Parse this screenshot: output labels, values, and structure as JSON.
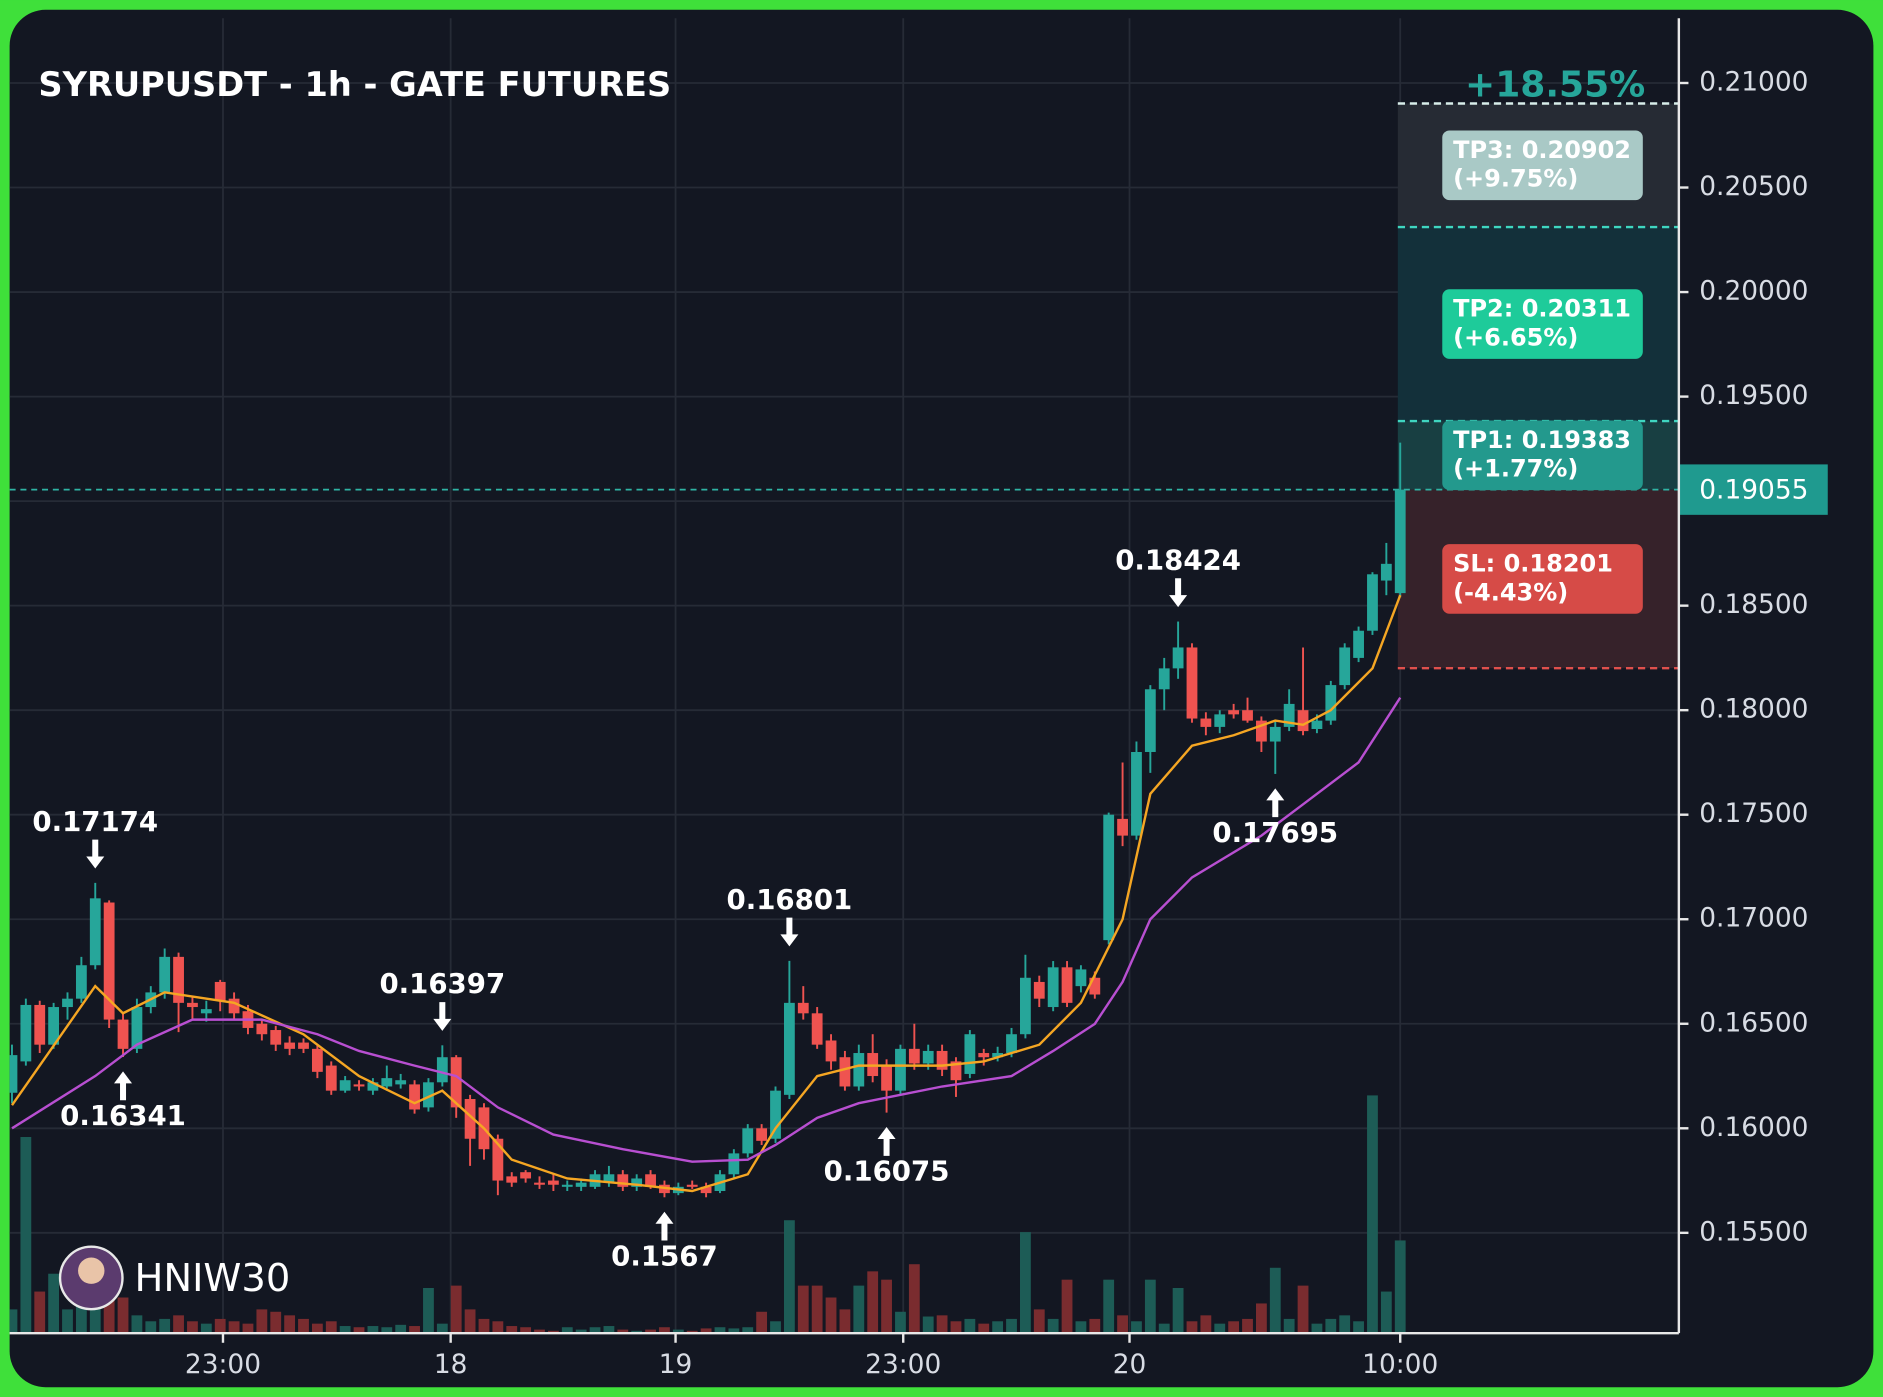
{
  "chart_data": {
    "type": "candlestick",
    "title": "SYRUPUSDT - 1h - GATE FUTURES",
    "watermark": "HNIW30",
    "change": "+18.55%",
    "up_color": "#26a69a",
    "down_color": "#ef5350",
    "volume_up_color": "#1d5c56",
    "volume_down_color": "#7a2c2f",
    "ylim": [
      0.1502,
      0.2131
    ],
    "yticks": [
      {
        "value": 0.155,
        "label": "0.15500"
      },
      {
        "value": 0.16,
        "label": "0.16000"
      },
      {
        "value": 0.165,
        "label": "0.16500"
      },
      {
        "value": 0.17,
        "label": "0.17000"
      },
      {
        "value": 0.175,
        "label": "0.17500"
      },
      {
        "value": 0.18,
        "label": "0.18000"
      },
      {
        "value": 0.185,
        "label": "0.18500"
      },
      {
        "value": 0.19,
        "label": "0.19000"
      },
      {
        "value": 0.195,
        "label": "0.19500"
      },
      {
        "value": 0.2,
        "label": "0.20000"
      },
      {
        "value": 0.205,
        "label": "0.20500"
      },
      {
        "value": 0.21,
        "label": "0.21000"
      }
    ],
    "xlim": [
      -0.17,
      120.07
    ],
    "xticks": [
      {
        "value": 15.2,
        "label": "23:00"
      },
      {
        "value": 31.6,
        "label": "18"
      },
      {
        "value": 47.8,
        "label": "19"
      },
      {
        "value": 64.2,
        "label": "23:00"
      },
      {
        "value": 80.5,
        "label": "20"
      },
      {
        "value": 100,
        "label": "10:00"
      }
    ],
    "grid": true,
    "open": [
      0.1617,
      0.1632,
      0.1659,
      0.164,
      0.1658,
      0.1662,
      0.1678,
      0.1708,
      0.1652,
      0.1638,
      0.1658,
      0.1665,
      0.1682,
      0.166,
      0.1655,
      0.167,
      0.1662,
      0.1656,
      0.165,
      0.1647,
      0.1641,
      0.1641,
      0.1638,
      0.163,
      0.1618,
      0.1621,
      0.1618,
      0.162,
      0.1621,
      0.1621,
      0.161,
      0.1622,
      0.1634,
      0.1614,
      0.161,
      0.1595,
      0.1577,
      0.1579,
      0.1574,
      0.1575,
      0.1572,
      0.1572,
      0.1572,
      0.1574,
      0.1578,
      0.1572,
      0.1578,
      0.1573,
      0.1569,
      0.1573,
      0.1572,
      0.157,
      0.1578,
      0.1588,
      0.16,
      0.1595,
      0.1616,
      0.166,
      0.1655,
      0.1642,
      0.1634,
      0.162,
      0.1636,
      0.163,
      0.1618,
      0.1638,
      0.1631,
      0.1637,
      0.1632,
      0.1626,
      0.1636,
      0.1634,
      0.1636,
      0.1645,
      0.167,
      0.1658,
      0.1677,
      0.1668,
      0.1672,
      0.169,
      0.1748,
      0.174,
      0.178,
      0.181,
      0.182,
      0.183,
      0.1796,
      0.1792,
      0.18,
      0.18,
      0.1795,
      0.1785,
      0.1792,
      0.18,
      0.1791,
      0.1795,
      0.1812,
      0.1825,
      0.1838,
      0.1862,
      0.1856
    ],
    "high": [
      0.164,
      0.1662,
      0.1661,
      0.166,
      0.1665,
      0.1682,
      0.17174,
      0.1709,
      0.1655,
      0.1662,
      0.1668,
      0.1686,
      0.1684,
      0.1663,
      0.1661,
      0.1671,
      0.1665,
      0.1659,
      0.1652,
      0.1649,
      0.1644,
      0.1643,
      0.164,
      0.1632,
      0.1625,
      0.1623,
      0.1624,
      0.163,
      0.1626,
      0.1623,
      0.1624,
      0.16397,
      0.1635,
      0.1616,
      0.1612,
      0.1597,
      0.1579,
      0.158,
      0.1577,
      0.1578,
      0.1575,
      0.1576,
      0.158,
      0.1582,
      0.158,
      0.1578,
      0.158,
      0.1575,
      0.1574,
      0.1575,
      0.1574,
      0.158,
      0.159,
      0.1602,
      0.1602,
      0.162,
      0.16801,
      0.1668,
      0.1658,
      0.1645,
      0.1637,
      0.164,
      0.1645,
      0.1633,
      0.164,
      0.165,
      0.164,
      0.164,
      0.1634,
      0.1647,
      0.1638,
      0.1639,
      0.1648,
      0.1683,
      0.1673,
      0.168,
      0.168,
      0.1678,
      0.1675,
      0.1751,
      0.1775,
      0.1785,
      0.1812,
      0.1825,
      0.18424,
      0.1832,
      0.1799,
      0.18,
      0.1803,
      0.1806,
      0.1797,
      0.1795,
      0.181,
      0.183,
      0.1798,
      0.1814,
      0.1832,
      0.184,
      0.1866,
      0.188,
      0.1928
    ],
    "low": [
      0.1612,
      0.163,
      0.1636,
      0.1638,
      0.1652,
      0.166,
      0.1676,
      0.1648,
      0.16341,
      0.1636,
      0.1655,
      0.1662,
      0.1646,
      0.1652,
      0.1651,
      0.1656,
      0.1652,
      0.1645,
      0.1642,
      0.1637,
      0.1635,
      0.1636,
      0.1624,
      0.1616,
      0.1617,
      0.1618,
      0.1616,
      0.1618,
      0.1619,
      0.1607,
      0.1608,
      0.162,
      0.1605,
      0.1582,
      0.1585,
      0.1568,
      0.1572,
      0.1574,
      0.1571,
      0.157,
      0.157,
      0.157,
      0.1571,
      0.1572,
      0.157,
      0.157,
      0.1571,
      0.1567,
      0.1568,
      0.1571,
      0.1567,
      0.1569,
      0.1576,
      0.1586,
      0.1592,
      0.1593,
      0.1614,
      0.1652,
      0.1638,
      0.1628,
      0.1618,
      0.1618,
      0.1622,
      0.16075,
      0.1616,
      0.1628,
      0.1628,
      0.1625,
      0.1615,
      0.1624,
      0.163,
      0.1632,
      0.1634,
      0.1643,
      0.1658,
      0.1656,
      0.1658,
      0.1665,
      0.1662,
      0.1688,
      0.1735,
      0.1738,
      0.177,
      0.18,
      0.1815,
      0.1794,
      0.1788,
      0.1789,
      0.1796,
      0.1794,
      0.178,
      0.17695,
      0.179,
      0.1788,
      0.1789,
      0.1793,
      0.181,
      0.1823,
      0.1836,
      0.1855,
      0.1854
    ],
    "close": [
      0.1635,
      0.1659,
      0.164,
      0.1658,
      0.1662,
      0.1678,
      0.171,
      0.1652,
      0.1638,
      0.1658,
      0.1665,
      0.1682,
      0.166,
      0.1658,
      0.1657,
      0.1661,
      0.1655,
      0.1648,
      0.1645,
      0.164,
      0.1638,
      0.1638,
      0.1627,
      0.1618,
      0.1623,
      0.162,
      0.1622,
      0.1624,
      0.1623,
      0.1609,
      0.1622,
      0.1634,
      0.161,
      0.1595,
      0.159,
      0.1575,
      0.1574,
      0.1576,
      0.1573,
      0.1573,
      0.1573,
      0.1574,
      0.1578,
      0.1578,
      0.1572,
      0.1576,
      0.1572,
      0.1569,
      0.1572,
      0.1572,
      0.1569,
      0.1578,
      0.1588,
      0.16,
      0.1594,
      0.1618,
      0.166,
      0.1655,
      0.164,
      0.1632,
      0.162,
      0.1636,
      0.1625,
      0.1618,
      0.1638,
      0.1631,
      0.1637,
      0.1628,
      0.1623,
      0.1645,
      0.1634,
      0.1636,
      0.1645,
      0.1672,
      0.1662,
      0.1677,
      0.166,
      0.1676,
      0.1664,
      0.175,
      0.174,
      0.178,
      0.181,
      0.182,
      0.183,
      0.1796,
      0.1792,
      0.1798,
      0.1798,
      0.1795,
      0.1785,
      0.1792,
      0.1803,
      0.179,
      0.1795,
      0.1812,
      0.183,
      0.1838,
      0.1865,
      0.187,
      0.19055
    ],
    "volume": [
      20,
      165,
      35,
      50,
      20,
      45,
      60,
      45,
      30,
      15,
      10,
      12,
      15,
      10,
      8,
      12,
      10,
      8,
      20,
      18,
      15,
      12,
      8,
      10,
      6,
      5,
      6,
      5,
      7,
      6,
      38,
      8,
      40,
      20,
      12,
      10,
      6,
      5,
      3,
      2,
      5,
      3,
      5,
      6,
      3,
      2,
      3,
      5,
      3,
      2,
      4,
      5,
      4,
      5,
      18,
      10,
      95,
      40,
      40,
      30,
      20,
      40,
      52,
      45,
      18,
      58,
      14,
      15,
      10,
      12,
      8,
      10,
      12,
      85,
      20,
      12,
      45,
      10,
      12,
      45,
      15,
      10,
      45,
      8,
      38,
      10,
      15,
      8,
      10,
      12,
      25,
      55,
      12,
      40,
      8,
      12,
      15,
      10,
      200,
      35,
      78
    ],
    "ma": [
      {
        "color": "#f5a623",
        "x": [
          0,
          6,
          8,
          11,
          16,
          21,
          25,
          29,
          31,
          34,
          36,
          40,
          45,
          49,
          53,
          55,
          58,
          61,
          67,
          70,
          74,
          77,
          80,
          82,
          85,
          88,
          91,
          93,
          95,
          98,
          100
        ],
        "values": [
          0.1611,
          0.1668,
          0.1655,
          0.1665,
          0.166,
          0.1645,
          0.1625,
          0.1612,
          0.1618,
          0.16,
          0.1585,
          0.1576,
          0.1573,
          0.157,
          0.1578,
          0.16,
          0.1625,
          0.163,
          0.163,
          0.1632,
          0.164,
          0.166,
          0.17,
          0.176,
          0.1783,
          0.1788,
          0.1795,
          0.1793,
          0.18,
          0.182,
          0.1855
        ]
      },
      {
        "color": "#b84fd1",
        "x": [
          0,
          6,
          9,
          13,
          18,
          22,
          25,
          29,
          32,
          35,
          39,
          44,
          49,
          53,
          55,
          58,
          61,
          67,
          72,
          75,
          78,
          80,
          82,
          85,
          90,
          93,
          97,
          100
        ],
        "values": [
          0.16,
          0.1625,
          0.164,
          0.1652,
          0.1652,
          0.1645,
          0.1637,
          0.163,
          0.1625,
          0.161,
          0.1597,
          0.159,
          0.1584,
          0.1585,
          0.1592,
          0.1605,
          0.1612,
          0.162,
          0.1625,
          0.1637,
          0.165,
          0.167,
          0.17,
          0.172,
          0.174,
          0.1755,
          0.1775,
          0.1806
        ]
      }
    ],
    "annotations": [
      {
        "value": 0.17174,
        "at": 6,
        "arrow": "down"
      },
      {
        "value": 0.16341,
        "at": 8,
        "arrow": "up"
      },
      {
        "value": 0.16397,
        "at": 31,
        "arrow": "down"
      },
      {
        "value": 0.1567,
        "at": 47,
        "arrow": "up"
      },
      {
        "value": 0.16801,
        "at": 56,
        "arrow": "down"
      },
      {
        "value": 0.16075,
        "at": 63,
        "arrow": "up"
      },
      {
        "value": 0.18424,
        "at": 84,
        "arrow": "down"
      },
      {
        "value": 0.17695,
        "at": 91,
        "arrow": "up"
      }
    ],
    "last_price": 0.19055,
    "last_price_color": "#1f9a8f",
    "levels": [
      {
        "label": "TP3: 0.20902",
        "pct": "(+9.75%)",
        "value": 0.20902,
        "color": "#a9c9c6",
        "line": "#d8eeea",
        "zone": "#262b34"
      },
      {
        "label": "TP2: 0.20311",
        "pct": "(+6.65%)",
        "value": 0.20311,
        "color": "#1ecb9a",
        "line": "#3fd6c0",
        "zone": "#13303a"
      },
      {
        "label": "TP1: 0.19383",
        "pct": "(+1.77%)",
        "value": 0.19383,
        "color": "#23998d",
        "line": "#3fd6c0",
        "zone": "#183f42"
      },
      {
        "label": "SL: 0.18201",
        "pct": "(-4.43%)",
        "value": 0.18201,
        "color": "#d64b47",
        "line": "#e0504c",
        "zone": "#36222a"
      }
    ]
  }
}
